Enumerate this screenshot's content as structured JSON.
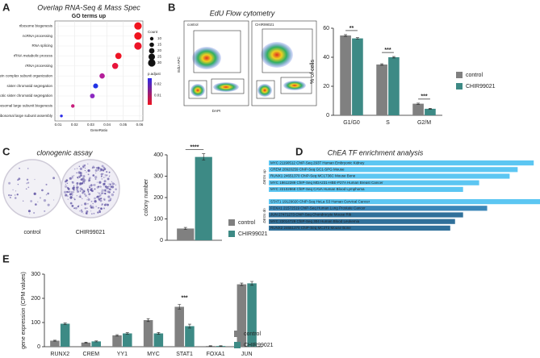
{
  "panel_labels": [
    "A",
    "B",
    "C",
    "D",
    "E"
  ],
  "flow": {
    "title": "EdU Flow cytometry",
    "images": [
      "control",
      "CHIR99021"
    ],
    "xlabel": "DAPI",
    "ylabel": "EdU-APC"
  },
  "clonogenic": {
    "title": "clonogenic assay",
    "images": [
      "control",
      "CHIR99021"
    ]
  },
  "chart_data": [
    {
      "type": "dot",
      "title": "Overlap RNA-Seq & Mass Spec",
      "subtitle": "GO terms up",
      "xlabel": "GeneRatio",
      "categories": [
        "ribosome biogenesis",
        "ncRNA processing",
        "RNA splicing",
        "rRNA metabolic process",
        "rRNA processing",
        "ribonucleoprotein complex subunit organization",
        "sister chromatid segregation",
        "mitotic sister chromatid segregation",
        "ribosomal large subunit biogenesis",
        "ribosomal large subunit assembly"
      ],
      "values": [
        0.059,
        0.059,
        0.059,
        0.047,
        0.045,
        0.037,
        0.033,
        0.031,
        0.019,
        0.012
      ],
      "sizes": [
        30,
        30,
        30,
        24,
        23,
        19,
        17,
        16,
        10,
        6
      ],
      "colors": [
        "#f0141e",
        "#f0141e",
        "#ec1428",
        "#ee1424",
        "#e8143a",
        "#b41e9a",
        "#2032e6",
        "#8c28c0",
        "#c81e7c",
        "#2a2ae8"
      ],
      "xlim": [
        0.008,
        0.062
      ],
      "xticks": [
        0.01,
        0.02,
        0.03,
        0.04,
        0.05,
        0.06
      ],
      "size_legend": {
        "title": "Count",
        "values": [
          10,
          15,
          20,
          25,
          30
        ]
      },
      "color_legend": {
        "title": "p.adjust",
        "ticks": [
          0.02,
          0.01
        ],
        "range": [
          0.025,
          0.002
        ],
        "colors": [
          "#2a2ae8",
          "#f0141e"
        ]
      }
    },
    {
      "type": "bar",
      "ylabel": "% of cells",
      "categories": [
        "G1/G0",
        "S",
        "G2/M"
      ],
      "series": [
        {
          "name": "control",
          "color": "#808080",
          "values": [
            55,
            35,
            8
          ],
          "errors": [
            0.6,
            0.5,
            0.4
          ]
        },
        {
          "name": "CHIR99021",
          "color": "#3d8a85",
          "values": [
            53,
            40,
            4.5
          ],
          "errors": [
            0.5,
            0.5,
            0.3
          ]
        }
      ],
      "annotations": [
        "**",
        "***",
        "***"
      ],
      "ylim": [
        0,
        60
      ],
      "yticks": [
        0,
        20,
        40,
        60
      ]
    },
    {
      "type": "bar",
      "ylabel": "colony number",
      "categories": [
        null
      ],
      "series": [
        {
          "name": "control",
          "color": "#808080",
          "values": [
            55
          ],
          "errors": [
            5
          ]
        },
        {
          "name": "CHIR99021",
          "color": "#3d8a85",
          "values": [
            390
          ],
          "errors": [
            15
          ]
        }
      ],
      "annotations": [
        "****"
      ],
      "ylim": [
        0,
        400
      ],
      "yticks": [
        0,
        100,
        200,
        300,
        400
      ]
    },
    {
      "type": "hbar",
      "title": "ChEA TF enrichment analysis",
      "series": [
        {
          "name": "DEGs up",
          "categories": [
            "MYC 21190512 ChIP-Seq 293T Human Embryonic Kidney",
            "CREM 20920259 ChIP-Seq GC1-SPG Mouse",
            "RUNX1 24651370 ChIP-Seq MC1736C Mouse Bone",
            "MYC 18612289 ChIP-Seq MDA231-HBE-P27A Human Breast Cancer",
            "MYC 22102868 ChIP-Seq CAVA Human Blood Lymphoma"
          ],
          "values": [
            330,
            310,
            300,
            262,
            242
          ],
          "colors": [
            "#5cc6f2",
            "#5cc6f2",
            "#5cc6f2",
            "#5cc6f2",
            "#5cc6f2"
          ]
        },
        {
          "name": "DEGs dn",
          "categories": [
            "STAT1 19129020 ChIP-Seq HeLa S3 Human Cervical Cancer",
            "FOXA1 21572519 ChIP-Seq Human Lung Prostate Cancer",
            "JUN 27471273 ChIP-Seq Chondrocyte Mouse Rib",
            "MYC 22014729 ChIP-Seq 304 Human Blood Leukemia",
            "RUNX2 24651370 ChIP-Seq MC3T3 Mouse Bone"
          ],
          "values": [
            372,
            272,
            242,
            232,
            226
          ],
          "colors": [
            "#5cc6f2",
            "#3a86b8",
            "#30709a",
            "#30709a",
            "#30709a"
          ]
        }
      ]
    },
    {
      "type": "bar",
      "ylabel": "gene expression (CPM values)",
      "categories": [
        "RUNX2",
        "CREM",
        "YY1",
        "MYC",
        "STAT1",
        "FOXA1",
        "JUN"
      ],
      "series": [
        {
          "name": "control",
          "color": "#808080",
          "values": [
            25,
            17,
            47,
            110,
            165,
            3,
            258
          ],
          "errors": [
            2,
            2,
            3,
            6,
            10,
            1,
            5
          ]
        },
        {
          "name": "CHIR99021",
          "color": "#3d8a85",
          "values": [
            95,
            22,
            55,
            55,
            85,
            3,
            262
          ],
          "errors": [
            3,
            2,
            3,
            4,
            8,
            1,
            8
          ]
        }
      ],
      "annotations": [
        null,
        null,
        null,
        null,
        "***",
        null,
        null
      ],
      "ylim": [
        0,
        300
      ],
      "yticks": [
        0,
        100,
        200,
        300
      ]
    }
  ]
}
